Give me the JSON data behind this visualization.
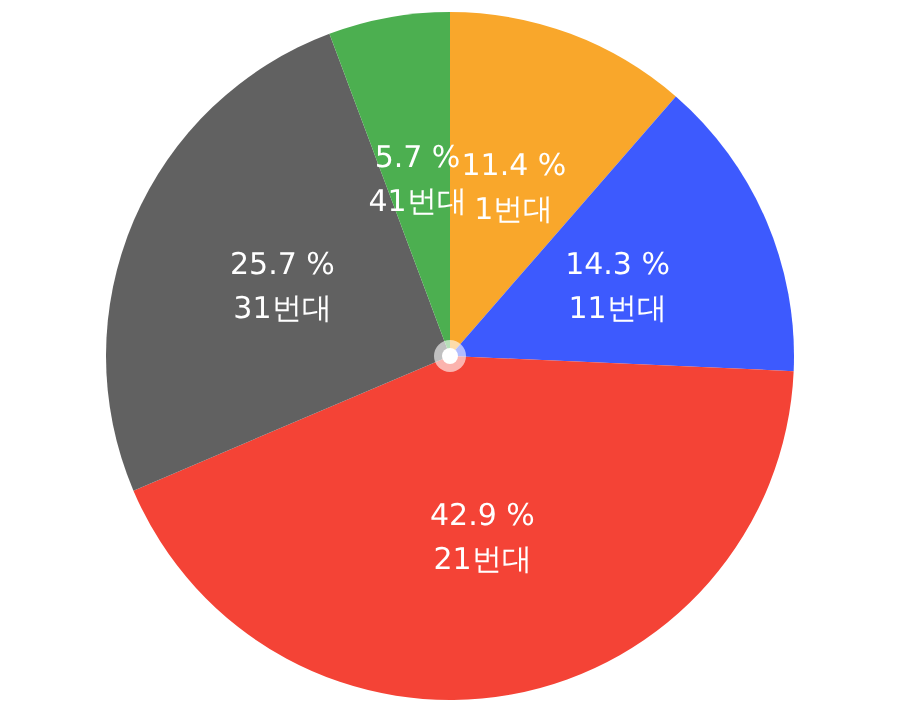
{
  "chart_data": {
    "type": "pie",
    "categories": [
      "1번대",
      "11번대",
      "21번대",
      "31번대",
      "41번대"
    ],
    "values": [
      11.4,
      14.3,
      42.9,
      25.7,
      5.7
    ],
    "value_labels": [
      "11.4 %",
      "14.3 %",
      "42.9 %",
      "25.7 %",
      "5.7 %"
    ],
    "colors": [
      "#f9a72b",
      "#3d5afe",
      "#f44336",
      "#616161",
      "#4caf50"
    ],
    "legend": false
  }
}
